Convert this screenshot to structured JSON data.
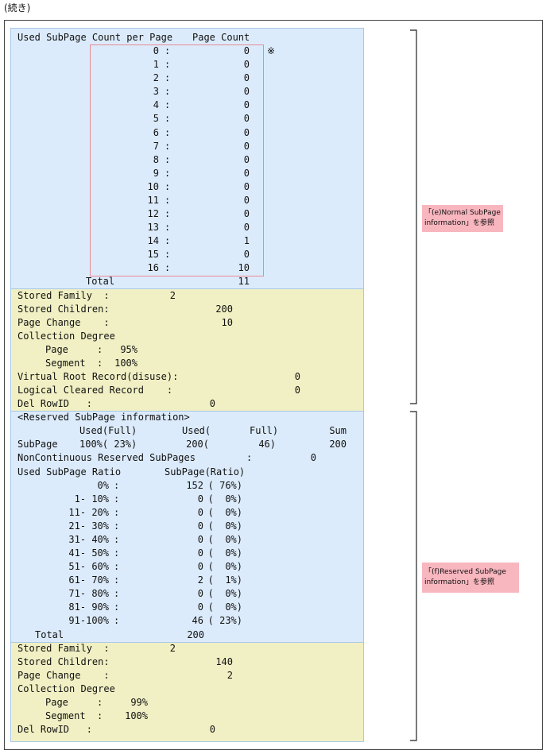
{
  "header": "(続き)",
  "note_mark": "※",
  "normal": {
    "header": {
      "label": "Used SubPage Count per Page",
      "count": "Page Count"
    },
    "separator": ":",
    "rows": [
      [
        0,
        0
      ],
      [
        1,
        0
      ],
      [
        2,
        0
      ],
      [
        3,
        0
      ],
      [
        4,
        0
      ],
      [
        5,
        0
      ],
      [
        6,
        0
      ],
      [
        7,
        0
      ],
      [
        8,
        0
      ],
      [
        9,
        0
      ],
      [
        10,
        0
      ],
      [
        11,
        0
      ],
      [
        12,
        0
      ],
      [
        13,
        0
      ],
      [
        14,
        1
      ],
      [
        15,
        0
      ],
      [
        16,
        10
      ]
    ],
    "total": {
      "label": "Total",
      "value": 11
    },
    "stored_family": {
      "label": "Stored Family  :",
      "value": 2
    },
    "stored_children": {
      "label": "Stored Children:",
      "value": 200
    },
    "page_change": {
      "label": "Page Change    :",
      "value": 10
    },
    "collection_degree": "Collection Degree",
    "page": {
      "label": "Page     :",
      "value": "95%"
    },
    "segment": {
      "label": "Segment  :",
      "value": "100%"
    },
    "virtual_root": {
      "label": "Virtual Root Record(disuse):",
      "value": 0
    },
    "logical_cleared": {
      "label": "Logical Cleared Record    :",
      "value": 0
    },
    "del_rowid": {
      "label": "Del RowID   :",
      "value": 0
    },
    "side_note": [
      "「(e)Normal SubPage",
      "information」を参照"
    ]
  },
  "reserved": {
    "title": "<Reserved SubPage information>",
    "header": {
      "used_full": "Used(Full)",
      "used": "Used(",
      "full": "Full)",
      "sum": "Sum"
    },
    "subpage": {
      "label": "SubPage",
      "used_full": "100%( 23%)",
      "used": "200(",
      "full": "46)",
      "sum": 200
    },
    "noncontinuous": {
      "label": "NonContinuous Reserved SubPages",
      "separator": ":",
      "value": 0
    },
    "ratio_header": {
      "label": "Used SubPage Ratio",
      "count": "SubPage(Ratio)"
    },
    "separator": ":",
    "rows": [
      [
        "0%",
        152,
        "( 76%)"
      ],
      [
        "1- 10%",
        0,
        "(  0%)"
      ],
      [
        "11- 20%",
        0,
        "(  0%)"
      ],
      [
        "21- 30%",
        0,
        "(  0%)"
      ],
      [
        "31- 40%",
        0,
        "(  0%)"
      ],
      [
        "41- 50%",
        0,
        "(  0%)"
      ],
      [
        "51- 60%",
        0,
        "(  0%)"
      ],
      [
        "61- 70%",
        2,
        "(  1%)"
      ],
      [
        "71- 80%",
        0,
        "(  0%)"
      ],
      [
        "81- 90%",
        0,
        "(  0%)"
      ],
      [
        "91-100%",
        46,
        "( 23%)"
      ]
    ],
    "total": {
      "label": "Total",
      "value": 200
    },
    "stored_family": {
      "label": "Stored Family  :",
      "value": 2
    },
    "stored_children": {
      "label": "Stored Children:",
      "value": 140
    },
    "page_change": {
      "label": "Page Change    :",
      "value": 2
    },
    "collection_degree": "Collection Degree",
    "page": {
      "label": "Page     :",
      "value": "99%"
    },
    "segment": {
      "label": "Segment  :",
      "value": "100%"
    },
    "del_rowid": {
      "label": "Del RowID   :",
      "value": 0
    },
    "side_note": [
      "「(f)Reserved SubPage",
      "information」を参照"
    ]
  }
}
